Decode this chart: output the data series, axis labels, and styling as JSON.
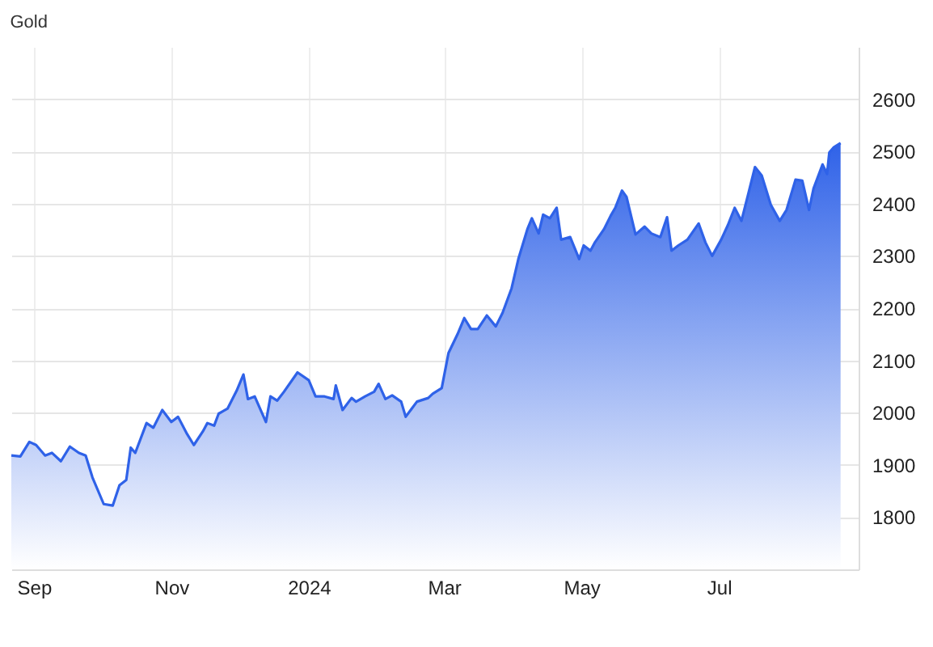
{
  "chart_data": {
    "type": "area",
    "title": "Gold",
    "x": [
      "2023-08-22",
      "2023-08-26",
      "2023-08-30",
      "2023-09-02",
      "2023-09-06",
      "2023-09-09",
      "2023-09-13",
      "2023-09-17",
      "2023-09-21",
      "2023-09-24",
      "2023-09-27",
      "2023-10-02",
      "2023-10-06",
      "2023-10-09",
      "2023-10-12",
      "2023-10-14",
      "2023-10-16",
      "2023-10-21",
      "2023-10-24",
      "2023-10-28",
      "2023-11-01",
      "2023-11-04",
      "2023-11-08",
      "2023-11-11",
      "2023-11-15",
      "2023-11-17",
      "2023-11-20",
      "2023-11-22",
      "2023-11-26",
      "2023-11-30",
      "2023-12-03",
      "2023-12-05",
      "2023-12-08",
      "2023-12-13",
      "2023-12-15",
      "2023-12-18",
      "2023-12-21",
      "2023-12-27",
      "2024-01-01",
      "2024-01-04",
      "2024-01-08",
      "2024-01-12",
      "2024-01-13",
      "2024-01-16",
      "2024-01-20",
      "2024-01-22",
      "2024-01-26",
      "2024-01-30",
      "2024-02-01",
      "2024-02-04",
      "2024-02-07",
      "2024-02-11",
      "2024-02-13",
      "2024-02-18",
      "2024-02-23",
      "2024-02-25",
      "2024-02-29",
      "2024-03-03",
      "2024-03-07",
      "2024-03-10",
      "2024-03-13",
      "2024-03-16",
      "2024-03-20",
      "2024-03-24",
      "2024-03-27",
      "2024-03-31",
      "2024-04-03",
      "2024-04-07",
      "2024-04-09",
      "2024-04-12",
      "2024-04-14",
      "2024-04-17",
      "2024-04-20",
      "2024-04-22",
      "2024-04-26",
      "2024-04-30",
      "2024-05-02",
      "2024-05-05",
      "2024-05-07",
      "2024-05-11",
      "2024-05-14",
      "2024-05-16",
      "2024-05-19",
      "2024-05-21",
      "2024-05-25",
      "2024-05-29",
      "2024-06-01",
      "2024-06-05",
      "2024-06-08",
      "2024-06-10",
      "2024-06-13",
      "2024-06-17",
      "2024-06-22",
      "2024-06-25",
      "2024-06-28",
      "2024-07-02",
      "2024-07-05",
      "2024-07-08",
      "2024-07-11",
      "2024-07-14",
      "2024-07-17",
      "2024-07-20",
      "2024-07-24",
      "2024-07-28",
      "2024-07-31",
      "2024-08-04",
      "2024-08-07",
      "2024-08-10",
      "2024-08-12",
      "2024-08-16",
      "2024-08-18",
      "2024-08-19",
      "2024-08-21",
      "2024-08-24"
    ],
    "series": [
      {
        "color": "#2f62e8",
        "values": [
          1918,
          1916,
          1944,
          1938,
          1918,
          1923,
          1907,
          1935,
          1923,
          1918,
          1876,
          1825,
          1822,
          1861,
          1871,
          1933,
          1923,
          1980,
          1971,
          2005,
          1982,
          1992,
          1959,
          1938,
          1964,
          1980,
          1975,
          1998,
          2008,
          2042,
          2073,
          2026,
          2031,
          1982,
          2031,
          2023,
          2040,
          2077,
          2062,
          2031,
          2031,
          2026,
          2052,
          2005,
          2028,
          2021,
          2031,
          2040,
          2055,
          2026,
          2033,
          2021,
          1992,
          2021,
          2028,
          2036,
          2047,
          2114,
          2150,
          2181,
          2160,
          2160,
          2186,
          2165,
          2191,
          2238,
          2294,
          2351,
          2372,
          2343,
          2379,
          2372,
          2392,
          2331,
          2336,
          2294,
          2320,
          2310,
          2326,
          2351,
          2377,
          2392,
          2425,
          2413,
          2341,
          2356,
          2343,
          2336,
          2374,
          2310,
          2320,
          2331,
          2362,
          2326,
          2300,
          2331,
          2359,
          2392,
          2367,
          2418,
          2470,
          2454,
          2398,
          2367,
          2388,
          2446,
          2444,
          2388,
          2429,
          2475,
          2457,
          2498,
          2508,
          2516
        ]
      }
    ],
    "xlim": [
      "2023-08-22",
      "2024-09-01"
    ],
    "xticks": [
      {
        "value": "2023-09-01",
        "label": "Sep"
      },
      {
        "value": "2023-11-01",
        "label": "Nov"
      },
      {
        "value": "2024-01-01",
        "label": "2024"
      },
      {
        "value": "2024-03-01",
        "label": "Mar"
      },
      {
        "value": "2024-05-01",
        "label": "May"
      },
      {
        "value": "2024-07-01",
        "label": "Jul"
      }
    ],
    "ylim": [
      1700,
      2700
    ],
    "yticks": [
      1800,
      1900,
      2000,
      2100,
      2200,
      2300,
      2400,
      2500,
      2600
    ],
    "grid": true
  }
}
